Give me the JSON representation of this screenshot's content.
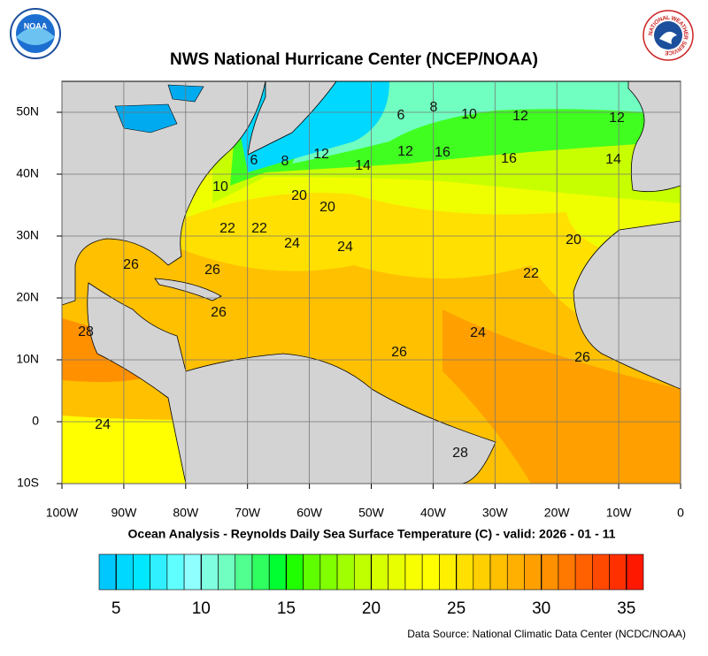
{
  "title": "NWS National Hurricane Center (NCEP/NOAA)",
  "subtitle": "Ocean Analysis - Reynolds Daily Sea Surface Temperature (C) - valid: 2026 - 01 - 11",
  "source": "Data Source: National Climatic Data Center (NCDC/NOAA)",
  "logos": {
    "left": "NOAA",
    "right": "NATIONAL WEATHER SERVICE"
  },
  "map": {
    "lon_range": [
      -100,
      0
    ],
    "lat_range": [
      -10,
      55
    ],
    "lon_ticks": [
      {
        "value": -100,
        "label": "100W"
      },
      {
        "value": -90,
        "label": "90W"
      },
      {
        "value": -80,
        "label": "80W"
      },
      {
        "value": -70,
        "label": "70W"
      },
      {
        "value": -60,
        "label": "60W"
      },
      {
        "value": -50,
        "label": "50W"
      },
      {
        "value": -40,
        "label": "40W"
      },
      {
        "value": -30,
        "label": "30W"
      },
      {
        "value": -20,
        "label": "20W"
      },
      {
        "value": -10,
        "label": "10W"
      },
      0
    ],
    "lat_ticks": [
      {
        "value": 50,
        "label": "50N"
      },
      {
        "value": 40,
        "label": "40N"
      },
      {
        "value": 30,
        "label": "30N"
      },
      {
        "value": 20,
        "label": "20N"
      },
      {
        "value": 10,
        "label": "10N"
      },
      0,
      {
        "value": -10,
        "label": "10S"
      }
    ],
    "contour_labels": [
      "6",
      "8",
      "10",
      "12",
      "12",
      "6",
      "8",
      "12",
      "14",
      "12",
      "16",
      "16",
      "14",
      "10",
      "20",
      "20",
      "22",
      "22",
      "24",
      "24",
      "20",
      "22",
      "26",
      "26",
      "26",
      "28",
      "24",
      "26",
      "26",
      "24",
      "28"
    ]
  },
  "colorbar": {
    "range": [
      4,
      36
    ],
    "ticks": [
      5,
      10,
      15,
      20,
      25,
      30,
      35
    ],
    "colors": [
      "#00c8ff",
      "#00d8ff",
      "#00e8ff",
      "#30f0ff",
      "#60ffff",
      "#90ffff",
      "#80ffe0",
      "#70ffc0",
      "#50ff90",
      "#30ff60",
      "#00ff30",
      "#20ff00",
      "#60ff00",
      "#80ff00",
      "#a0ff00",
      "#c0ff00",
      "#d8ff00",
      "#e8ff00",
      "#f8ff00",
      "#ffff00",
      "#fff000",
      "#ffe000",
      "#ffd000",
      "#ffc000",
      "#ffb000",
      "#ffa000",
      "#ff9000",
      "#ff7800",
      "#ff6000",
      "#ff4800",
      "#ff3000",
      "#ff1800"
    ]
  }
}
